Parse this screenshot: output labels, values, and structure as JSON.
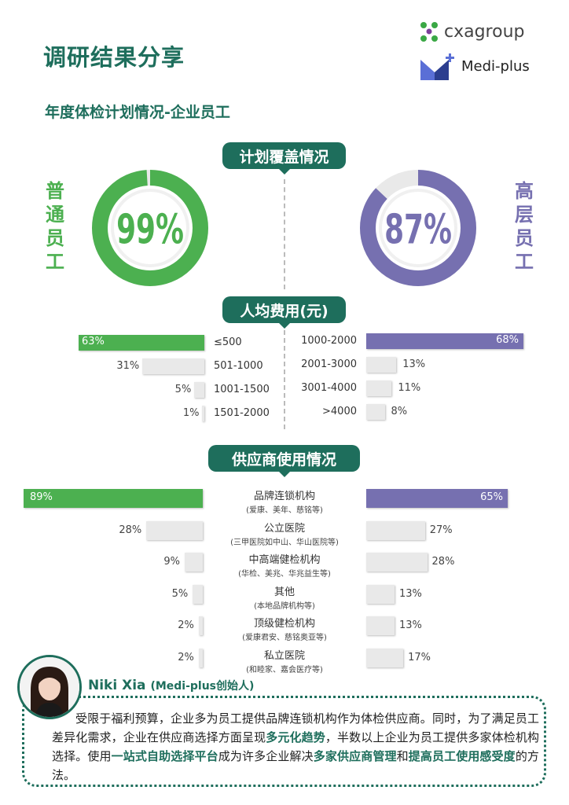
{
  "header": {
    "title": "调研结果分享",
    "subtitle": "年度体检计划情况-企业员工"
  },
  "logos": {
    "cxa": "cxagroup",
    "medi": "Medi-plus"
  },
  "sections": {
    "coverage": "计划覆盖情况",
    "cost": "人均费用(元)",
    "supplier": "供应商使用情况"
  },
  "groups": {
    "left": "普通员工",
    "right": "高层员工"
  },
  "colors": {
    "green": "#4cb050",
    "purple": "#7670b0",
    "teal": "#1e6e5c",
    "gray": "#e9e9e9"
  },
  "chart_data": [
    {
      "type": "pie",
      "series": [
        {
          "name": "普通员工",
          "values": [
            99,
            1
          ]
        }
      ],
      "center_label": "99%"
    },
    {
      "type": "pie",
      "series": [
        {
          "name": "高层员工",
          "values": [
            87,
            13
          ]
        }
      ],
      "center_label": "87%"
    },
    {
      "type": "bar",
      "orientation": "horizontal",
      "title": "人均费用(元)",
      "series": [
        {
          "name": "普通员工",
          "categories": [
            "≤500",
            "501-1000",
            "1001-1500",
            "1501-2000"
          ],
          "values": [
            63,
            31,
            5,
            1
          ],
          "labels": [
            "63%",
            "31%",
            "5%",
            "1%"
          ]
        },
        {
          "name": "高层员工",
          "categories": [
            "1000-2000",
            "2001-3000",
            "3001-4000",
            ">4000"
          ],
          "values": [
            68,
            13,
            11,
            8
          ],
          "labels": [
            "68%",
            "13%",
            "11%",
            "8%"
          ]
        }
      ]
    },
    {
      "type": "bar",
      "orientation": "horizontal",
      "title": "供应商使用情况",
      "categories": [
        "品牌连锁机构",
        "公立医院",
        "中高端健检机构",
        "其他",
        "顶级健检机构",
        "私立医院"
      ],
      "category_notes": [
        "(爱康、美年、慈铭等)",
        "(三甲医院如中山、华山医院等)",
        "(华检、美兆、华兆益生等)",
        "(本地品牌机构等)",
        "(爱康君安、慈铭奥亚等)",
        "(和睦家、嘉会医疗等)"
      ],
      "series": [
        {
          "name": "普通员工",
          "values": [
            89,
            28,
            9,
            5,
            2,
            2
          ],
          "labels": [
            "89%",
            "28%",
            "9%",
            "5%",
            "2%",
            "2%"
          ]
        },
        {
          "name": "高层员工",
          "values": [
            65,
            27,
            28,
            13,
            13,
            17
          ],
          "labels": [
            "65%",
            "27%",
            "28%",
            "13%",
            "13%",
            "17%"
          ]
        }
      ]
    }
  ],
  "quote": {
    "author": "Niki Xia",
    "role": "(Medi-plus创始人)",
    "segments": [
      {
        "text": "受限于福利预算，企业多为员工提供品牌连锁机构作为体检供应商。同时，为了满足员工差异化需求，企业在供应商选择方面呈现",
        "bold": false
      },
      {
        "text": "多元化趋势",
        "bold": true
      },
      {
        "text": "，半数以上企业为员工提供多家体检机构选择。使用",
        "bold": false
      },
      {
        "text": "一站式自助选择平台",
        "bold": true
      },
      {
        "text": "成为许多企业解决",
        "bold": false
      },
      {
        "text": "多家供应商管理",
        "bold": true
      },
      {
        "text": "和",
        "bold": false
      },
      {
        "text": "提高员工使用感受度",
        "bold": true
      },
      {
        "text": "的方法。",
        "bold": false
      }
    ]
  }
}
